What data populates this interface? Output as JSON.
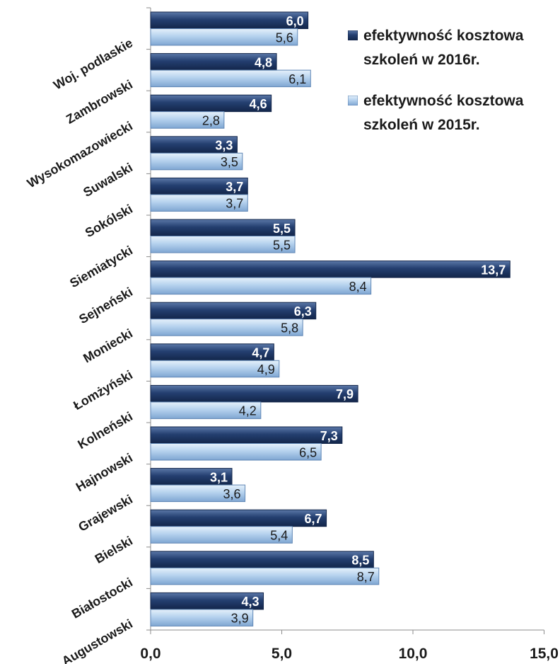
{
  "chart_data": {
    "type": "bar",
    "orientation": "horizontal",
    "title": "",
    "xlabel": "",
    "ylabel": "",
    "xlim": [
      0,
      15
    ],
    "x_ticks": [
      "0,0",
      "5,0",
      "10,0",
      "15,0"
    ],
    "grid": false,
    "legend_position": "top-right",
    "categories": [
      "Woj. podlaskie",
      "Zambrowski",
      "Wysokomazowiecki",
      "Suwalski",
      "Sokólski",
      "Siemiatycki",
      "Sejneński",
      "Moniecki",
      "Łomżyński",
      "Kolneński",
      "Hajnowski",
      "Grajewski",
      "Bielski",
      "Białostocki",
      "Augustowski"
    ],
    "series": [
      {
        "name": "efektywność kosztowa szkoleń w 2016r.",
        "color": "#1f3864",
        "values": [
          6.0,
          4.8,
          4.6,
          3.3,
          3.7,
          5.5,
          13.7,
          6.3,
          4.7,
          7.9,
          7.3,
          3.1,
          6.7,
          8.5,
          4.3
        ],
        "labels": [
          "6,0",
          "4,8",
          "4,6",
          "3,3",
          "3,7",
          "5,5",
          "13,7",
          "6,3",
          "4,7",
          "7,9",
          "7,3",
          "3,1",
          "6,7",
          "8,5",
          "4,3"
        ]
      },
      {
        "name": "efektywność kosztowa szkoleń w 2015r.",
        "color": "#9dc3e6",
        "values": [
          5.6,
          6.1,
          2.8,
          3.5,
          3.7,
          5.5,
          8.4,
          5.8,
          4.9,
          4.2,
          6.5,
          3.6,
          5.4,
          8.7,
          3.9
        ],
        "labels": [
          "5,6",
          "6,1",
          "2,8",
          "3,5",
          "3,7",
          "5,5",
          "8,4",
          "5,8",
          "4,9",
          "4,2",
          "6,5",
          "3,6",
          "5,4",
          "8,7",
          "3,9"
        ]
      }
    ]
  },
  "legend": {
    "items": [
      {
        "line1": "efektywność kosztowa",
        "line2": "szkoleń w 2016r."
      },
      {
        "line1": "efektywność kosztowa",
        "line2": "szkoleń w 2015r."
      }
    ]
  }
}
